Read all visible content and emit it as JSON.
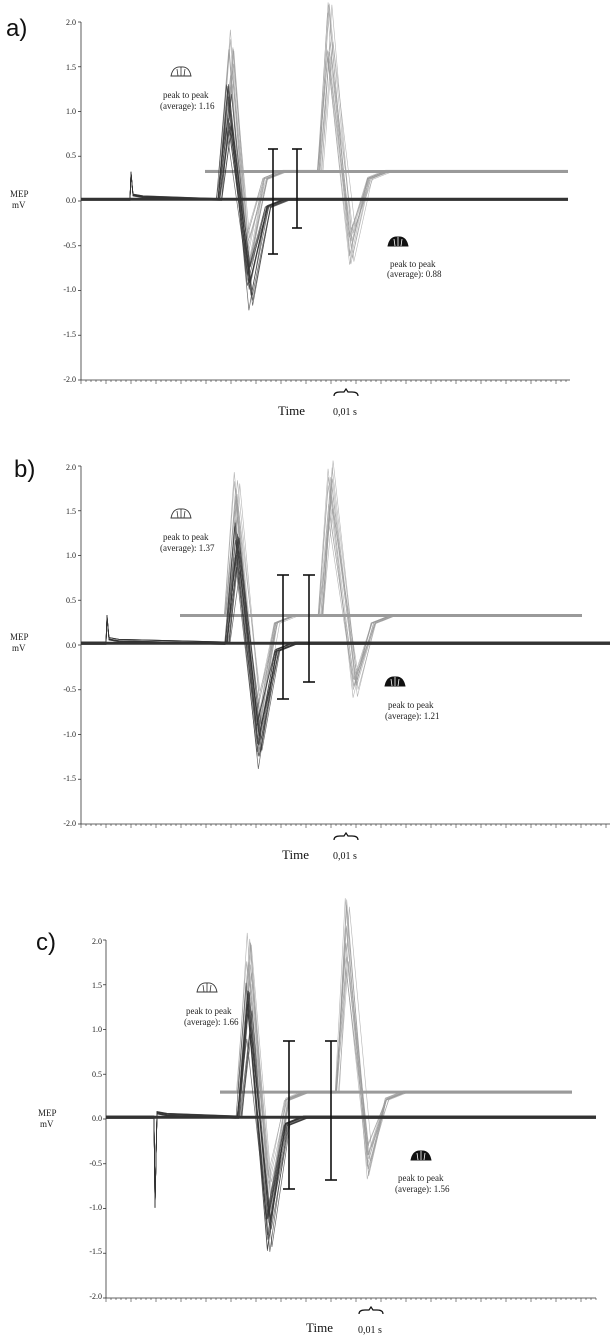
{
  "chart_data": [
    {
      "type": "line",
      "panel": "a)",
      "ylabel": [
        "MEP",
        "mV"
      ],
      "xlabel": "Time",
      "ylim": [
        -2.0,
        2.0
      ],
      "yticks": [
        "2.0",
        "1.5",
        "1.0",
        "0.5",
        "0.0",
        "-0.5",
        "-1.0",
        "-1.5",
        "-2.0"
      ],
      "scale_bar_label": "0,01 s",
      "annotations": [
        {
          "text": [
            "peak to peak",
            "(average): 1.16"
          ],
          "icon": "open-hand-icon"
        },
        {
          "text": [
            "peak to peak",
            "(average): 0.88"
          ],
          "icon": "filled-hand-icon"
        }
      ],
      "series": [
        {
          "color": "#9a9a9a",
          "baseline": 0.33,
          "peaks": [
            [
              1.55,
              -1.2
            ],
            [
              1.85,
              -1.0
            ]
          ]
        },
        {
          "color": "#333333",
          "baseline": 0.02,
          "peaks": [
            [
              1.25,
              -1.2
            ]
          ]
        }
      ],
      "error_bars": [
        [
          -0.6,
          0.58
        ],
        [
          -0.3,
          0.58
        ]
      ]
    },
    {
      "type": "line",
      "panel": "b)",
      "ylabel": [
        "MEP",
        "mV"
      ],
      "xlabel": "Time",
      "ylim": [
        -2.0,
        2.0
      ],
      "yticks": [
        "2.0",
        "1.5",
        "1.0",
        "0.5",
        "0.0",
        "-0.5",
        "-1.0",
        "-1.5",
        "-2.0"
      ],
      "scale_bar_label": "0,01 s",
      "annotations": [
        {
          "text": [
            "peak to peak",
            "(average): 1.37"
          ],
          "icon": "open-hand-icon"
        },
        {
          "text": [
            "peak to peak",
            "(average): 1.21"
          ],
          "icon": "filled-hand-icon"
        }
      ],
      "series": [
        {
          "color": "#9a9a9a",
          "baseline": 0.33,
          "peaks": [
            [
              1.55,
              -1.4
            ],
            [
              1.7,
              -0.95
            ]
          ]
        },
        {
          "color": "#333333",
          "baseline": 0.02,
          "peaks": [
            [
              1.35,
              -1.4
            ]
          ]
        }
      ],
      "error_bars": [
        [
          -0.62,
          0.78
        ],
        [
          -0.44,
          0.78
        ]
      ]
    },
    {
      "type": "line",
      "panel": "c)",
      "ylabel": [
        "MEP",
        "mV"
      ],
      "xlabel": "Time",
      "ylim": [
        -2.0,
        2.0
      ],
      "yticks": [
        "2.0",
        "1.5",
        "1.0",
        "0.5",
        "0.0",
        "-0.5",
        "-1.0",
        "-1.5",
        "-2.0"
      ],
      "scale_bar_label": "0,01 s",
      "annotations": [
        {
          "text": [
            "peak to peak",
            "(average): 1.66"
          ],
          "icon": "open-hand-icon"
        },
        {
          "text": [
            "peak to peak",
            "(average): 1.56"
          ],
          "icon": "filled-hand-icon"
        }
      ],
      "series": [
        {
          "color": "#9a9a9a",
          "baseline": 0.3,
          "peaks": [
            [
              1.78,
              -1.45
            ],
            [
              2.15,
              -0.95
            ]
          ]
        },
        {
          "color": "#333333",
          "baseline": 0.02,
          "peaks": [
            [
              1.45,
              -1.45
            ]
          ]
        }
      ],
      "error_bars": [
        [
          -0.8,
          0.87
        ],
        [
          -0.7,
          0.87
        ]
      ]
    }
  ]
}
